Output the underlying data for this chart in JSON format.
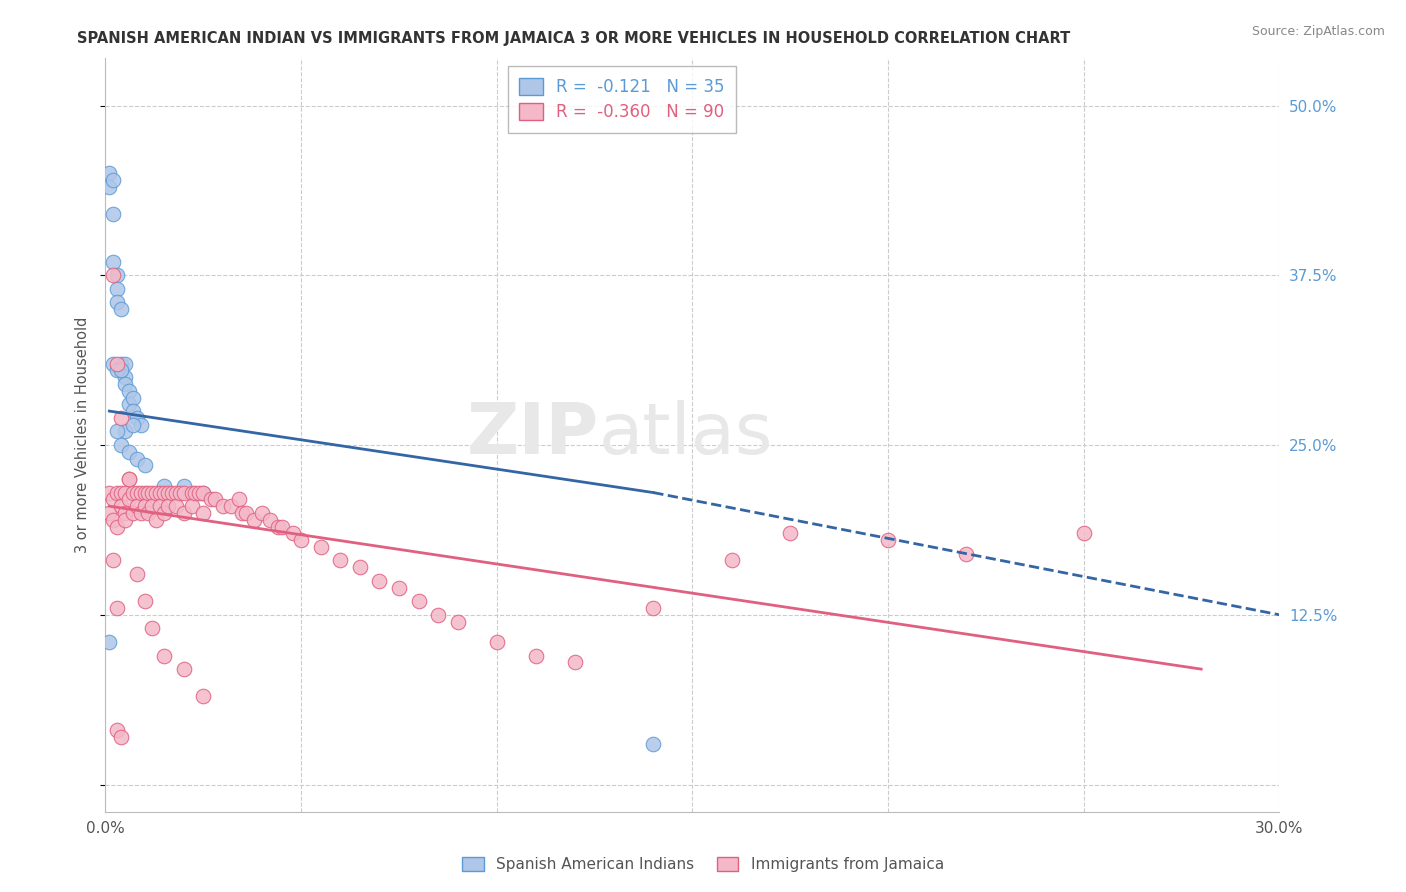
{
  "title": "SPANISH AMERICAN INDIAN VS IMMIGRANTS FROM JAMAICA 3 OR MORE VEHICLES IN HOUSEHOLD CORRELATION CHART",
  "source": "Source: ZipAtlas.com",
  "ylabel": "3 or more Vehicles in Household",
  "xlim": [
    0.0,
    0.3
  ],
  "ylim": [
    -0.02,
    0.535
  ],
  "yticks": [
    0.0,
    0.125,
    0.25,
    0.375,
    0.5
  ],
  "yticklabels_right": [
    "",
    "12.5%",
    "25.0%",
    "37.5%",
    "50.0%"
  ],
  "grid_color": "#cccccc",
  "background_color": "#ffffff",
  "blue_color": "#aec6e8",
  "blue_edge": "#5b9bd5",
  "blue_line": "#3465a4",
  "pink_color": "#f4b8c8",
  "pink_edge": "#e06080",
  "pink_line": "#e06080",
  "series": [
    {
      "name": "Spanish American Indians",
      "R": -0.121,
      "N": 35,
      "trendline_x0": 0.001,
      "trendline_x1": 0.14,
      "trendline_y0": 0.275,
      "trendline_y1": 0.215,
      "trendline_dash_x0": 0.14,
      "trendline_dash_x1": 0.3,
      "trendline_dash_y0": 0.215,
      "trendline_dash_y1": 0.125,
      "x": [
        0.001,
        0.001,
        0.002,
        0.002,
        0.002,
        0.003,
        0.003,
        0.003,
        0.004,
        0.004,
        0.004,
        0.005,
        0.005,
        0.005,
        0.006,
        0.006,
        0.007,
        0.007,
        0.008,
        0.009,
        0.002,
        0.003,
        0.004,
        0.005,
        0.003,
        0.004,
        0.006,
        0.007,
        0.008,
        0.01,
        0.015,
        0.02,
        0.025,
        0.001,
        0.14
      ],
      "y": [
        0.45,
        0.44,
        0.445,
        0.42,
        0.385,
        0.375,
        0.365,
        0.355,
        0.35,
        0.31,
        0.305,
        0.31,
        0.3,
        0.295,
        0.29,
        0.28,
        0.285,
        0.275,
        0.27,
        0.265,
        0.31,
        0.305,
        0.305,
        0.26,
        0.26,
        0.25,
        0.245,
        0.265,
        0.24,
        0.235,
        0.22,
        0.22,
        0.215,
        0.105,
        0.03
      ]
    },
    {
      "name": "Immigrants from Jamaica",
      "R": -0.36,
      "N": 90,
      "trendline_x0": 0.001,
      "trendline_x1": 0.28,
      "trendline_y0": 0.205,
      "trendline_y1": 0.085,
      "x": [
        0.001,
        0.001,
        0.002,
        0.002,
        0.003,
        0.003,
        0.004,
        0.004,
        0.005,
        0.005,
        0.005,
        0.006,
        0.006,
        0.007,
        0.007,
        0.008,
        0.008,
        0.009,
        0.009,
        0.01,
        0.01,
        0.011,
        0.011,
        0.012,
        0.012,
        0.013,
        0.013,
        0.014,
        0.014,
        0.015,
        0.015,
        0.016,
        0.016,
        0.017,
        0.018,
        0.018,
        0.019,
        0.02,
        0.02,
        0.022,
        0.022,
        0.023,
        0.024,
        0.025,
        0.025,
        0.027,
        0.028,
        0.03,
        0.032,
        0.034,
        0.035,
        0.036,
        0.038,
        0.04,
        0.042,
        0.044,
        0.045,
        0.048,
        0.05,
        0.055,
        0.06,
        0.065,
        0.07,
        0.075,
        0.08,
        0.085,
        0.09,
        0.1,
        0.11,
        0.12,
        0.002,
        0.003,
        0.004,
        0.006,
        0.008,
        0.01,
        0.012,
        0.015,
        0.02,
        0.025,
        0.002,
        0.003,
        0.14,
        0.16,
        0.175,
        0.2,
        0.22,
        0.25,
        0.003,
        0.004
      ],
      "y": [
        0.215,
        0.2,
        0.21,
        0.195,
        0.215,
        0.19,
        0.215,
        0.205,
        0.215,
        0.2,
        0.195,
        0.225,
        0.21,
        0.215,
        0.2,
        0.215,
        0.205,
        0.215,
        0.2,
        0.215,
        0.205,
        0.215,
        0.2,
        0.215,
        0.205,
        0.215,
        0.195,
        0.215,
        0.205,
        0.215,
        0.2,
        0.215,
        0.205,
        0.215,
        0.215,
        0.205,
        0.215,
        0.215,
        0.2,
        0.215,
        0.205,
        0.215,
        0.215,
        0.215,
        0.2,
        0.21,
        0.21,
        0.205,
        0.205,
        0.21,
        0.2,
        0.2,
        0.195,
        0.2,
        0.195,
        0.19,
        0.19,
        0.185,
        0.18,
        0.175,
        0.165,
        0.16,
        0.15,
        0.145,
        0.135,
        0.125,
        0.12,
        0.105,
        0.095,
        0.09,
        0.375,
        0.31,
        0.27,
        0.225,
        0.155,
        0.135,
        0.115,
        0.095,
        0.085,
        0.065,
        0.165,
        0.13,
        0.13,
        0.165,
        0.185,
        0.18,
        0.17,
        0.185,
        0.04,
        0.035
      ]
    }
  ]
}
